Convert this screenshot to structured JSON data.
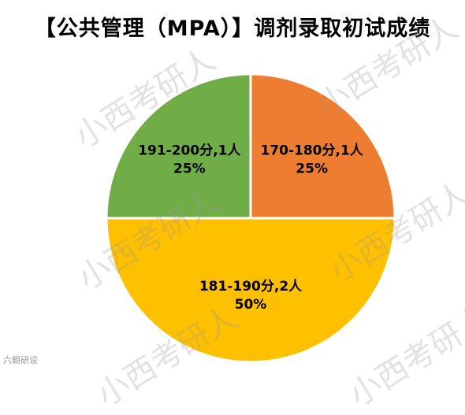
{
  "chart_data": {
    "type": "pie",
    "title": "【公共管理（MPA）】调剂录取初试成绩",
    "slices": [
      {
        "name": "170-180分",
        "value": 1,
        "count_label": "1人",
        "percent": "25%",
        "color": "#ED7D31"
      },
      {
        "name": "181-190分",
        "value": 2,
        "count_label": "2人",
        "percent": "50%",
        "color": "#FFC000"
      },
      {
        "name": "191-200分",
        "value": 1,
        "count_label": "1人",
        "percent": "25%",
        "color": "#70AD47"
      }
    ],
    "legend": "none",
    "start_angle_deg": 0,
    "direction": "clockwise-from-top"
  },
  "watermark_text": "小西考研人",
  "source_mark": "六朝研设"
}
